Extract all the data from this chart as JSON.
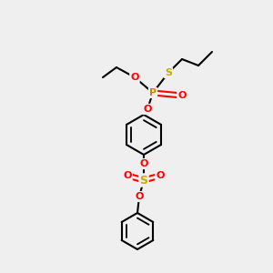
{
  "bg_color": "#efefef",
  "bond_color": "#000000",
  "O_color": "#ff0000",
  "S_color": "#ccaa00",
  "P_color": "#cc8800",
  "bond_width": 1.5,
  "figsize": [
    3.0,
    3.0
  ],
  "dpi": 100,
  "xlim": [
    0,
    300
  ],
  "ylim": [
    0,
    300
  ]
}
